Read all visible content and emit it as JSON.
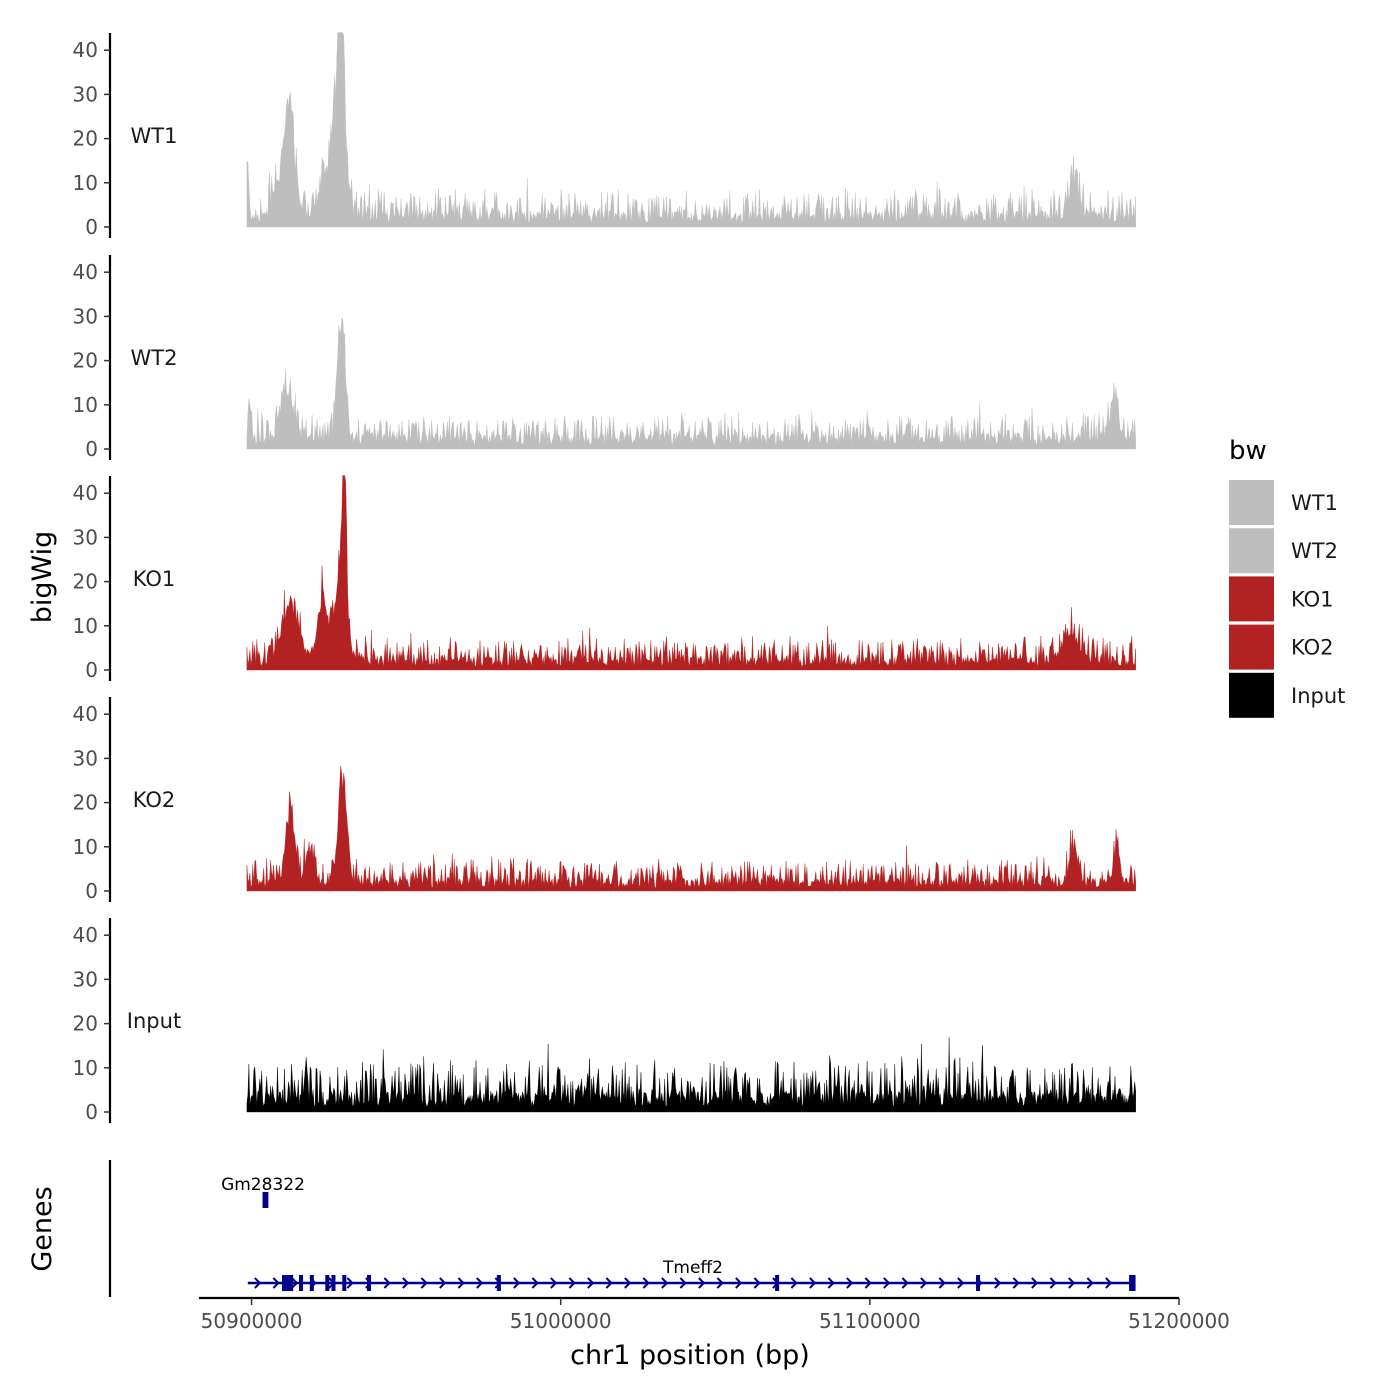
{
  "chart_data": {
    "type": "area",
    "ylabel": "bigWig",
    "genes_label": "Genes",
    "xlabel": "chr1 position (bp)",
    "region": {
      "chrom": "chr1",
      "start": 50898500,
      "end": 51186000
    },
    "xlim": [
      50883000,
      51200000
    ],
    "x_ticks": [
      50900000,
      51000000,
      51100000,
      51200000
    ],
    "x_tick_labels": [
      "50900000",
      "51000000",
      "51100000",
      "51200000"
    ],
    "ylim": [
      0,
      45
    ],
    "y_ticks": [
      0,
      10,
      20,
      30,
      40
    ],
    "y_tick_labels": [
      "0",
      "10",
      "20",
      "30",
      "40"
    ],
    "series": [
      {
        "name": "WT1",
        "color": "#bebebe",
        "baseline": 3,
        "noise": 5.5,
        "peaks": [
          {
            "pos": 50898800,
            "height": 10,
            "width": 500
          },
          {
            "pos": 50911000,
            "height": 15,
            "width": 2500
          },
          {
            "pos": 50912500,
            "height": 18,
            "width": 1200
          },
          {
            "pos": 50925000,
            "height": 10,
            "width": 3000
          },
          {
            "pos": 50928500,
            "height": 34,
            "width": 1800
          },
          {
            "pos": 50929000,
            "height": 42,
            "width": 600
          },
          {
            "pos": 51166000,
            "height": 10,
            "width": 1500
          }
        ]
      },
      {
        "name": "WT2",
        "color": "#bebebe",
        "baseline": 3,
        "noise": 5,
        "peaks": [
          {
            "pos": 50899500,
            "height": 9,
            "width": 500
          },
          {
            "pos": 50911500,
            "height": 12,
            "width": 2200
          },
          {
            "pos": 50929000,
            "height": 29,
            "width": 1300
          },
          {
            "pos": 51179000,
            "height": 9,
            "width": 1500
          }
        ]
      },
      {
        "name": "KO1",
        "color": "#b22222",
        "baseline": 2.5,
        "noise": 5,
        "peaks": [
          {
            "pos": 50912500,
            "height": 14,
            "width": 2800
          },
          {
            "pos": 50922500,
            "height": 12,
            "width": 1200
          },
          {
            "pos": 50925500,
            "height": 10,
            "width": 2500
          },
          {
            "pos": 50929500,
            "height": 28,
            "width": 1400
          },
          {
            "pos": 50930000,
            "height": 34,
            "width": 500
          },
          {
            "pos": 51165000,
            "height": 6,
            "width": 3000
          }
        ]
      },
      {
        "name": "KO2",
        "color": "#b22222",
        "baseline": 2.5,
        "noise": 5,
        "peaks": [
          {
            "pos": 50912500,
            "height": 19,
            "width": 1400
          },
          {
            "pos": 50919000,
            "height": 9,
            "width": 1500
          },
          {
            "pos": 50929500,
            "height": 27,
            "width": 1300
          },
          {
            "pos": 51166000,
            "height": 8,
            "width": 1500
          },
          {
            "pos": 51180000,
            "height": 10,
            "width": 800
          }
        ]
      },
      {
        "name": "Input",
        "color": "#000000",
        "baseline": 4,
        "noise": 8,
        "peaks": []
      }
    ],
    "legend": {
      "title": "bw",
      "entries": [
        {
          "label": "WT1",
          "color": "#bebebe"
        },
        {
          "label": "WT2",
          "color": "#bebebe"
        },
        {
          "label": "KO1",
          "color": "#b22222"
        },
        {
          "label": "KO2",
          "color": "#b22222"
        },
        {
          "label": "Input",
          "color": "#000000"
        }
      ]
    },
    "genes": [
      {
        "name": "Gm28322",
        "start": 50904000,
        "end": 50905000,
        "strand": "+",
        "row": 1,
        "exons": [
          50904200,
          50904800
        ]
      },
      {
        "name": "Tmeff2",
        "start": 50898800,
        "end": 51185500,
        "strand": "+",
        "row": 2,
        "exons": [
          50910500,
          50911800,
          50912800,
          50916000,
          50919500,
          50924500,
          50926500,
          50930000,
          50938000,
          50980000,
          51070000,
          51135000,
          51184500,
          51185300
        ]
      }
    ],
    "gene_color": "#00008b"
  }
}
